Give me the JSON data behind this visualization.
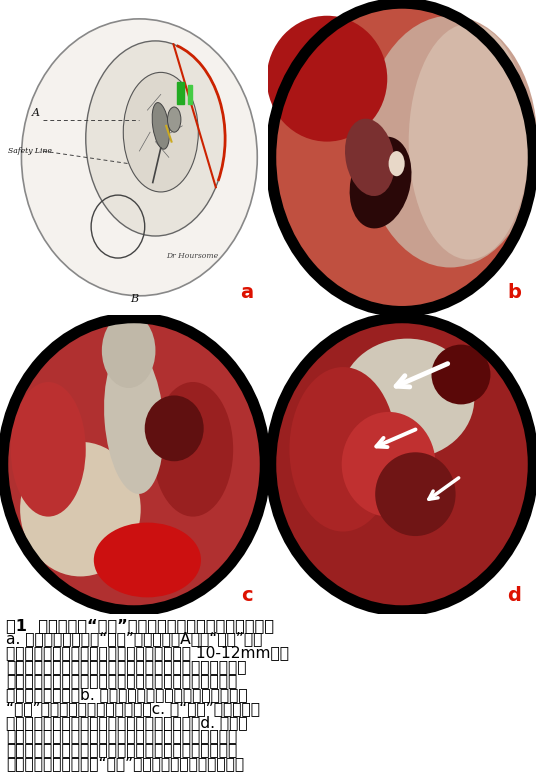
{
  "figure_width": 5.36,
  "figure_height": 7.77,
  "dpi": 100,
  "background_color": "#ffffff",
  "panel_label_color": "#dd1100",
  "panel_label_fontsize": 14,
  "caption_lines": [
    "图1  应用经耳道“锁孔”技术处理上鼓室胆脂瘻（右侧）。",
    "a. 内镜下经耳道制作“锁孔”的模式图，A线为“锁孔”前缘",
    "的定位线，以锤骨短突为起点，向后上延长约 10-12mm，在",
    "延长线末端处为终点，逐层磨薄外耳道后壁骨质，可以直接",
    "暴露外耳道内侧所投影的鼓窦空间，即砍骨短脚所在处及",
    "后方的鼓窦空间。b. 在耳内镜持续灌流模式下经耳道打开",
    "“锁孔”，发现鼓窦内存在胆脂瘻。c. 经“锁孔”确定胆脂瘻",
    "侵犯至鼓窦后，再翻起鼓膜处理中下鼓室病变。d. 经耳后",
    "径路局限开放乳突后，经由鼓窦伸入内镜观察清除上鼓室",
    "空间的病变，避免了上鼓室外侧壁的骨质磨除。长粗算头",
    "所指为在乳突内观察的“锁孔”，短粗算头所指为水平半规"
  ],
  "caption_fontsize": 11.2,
  "caption_title_bold": true
}
